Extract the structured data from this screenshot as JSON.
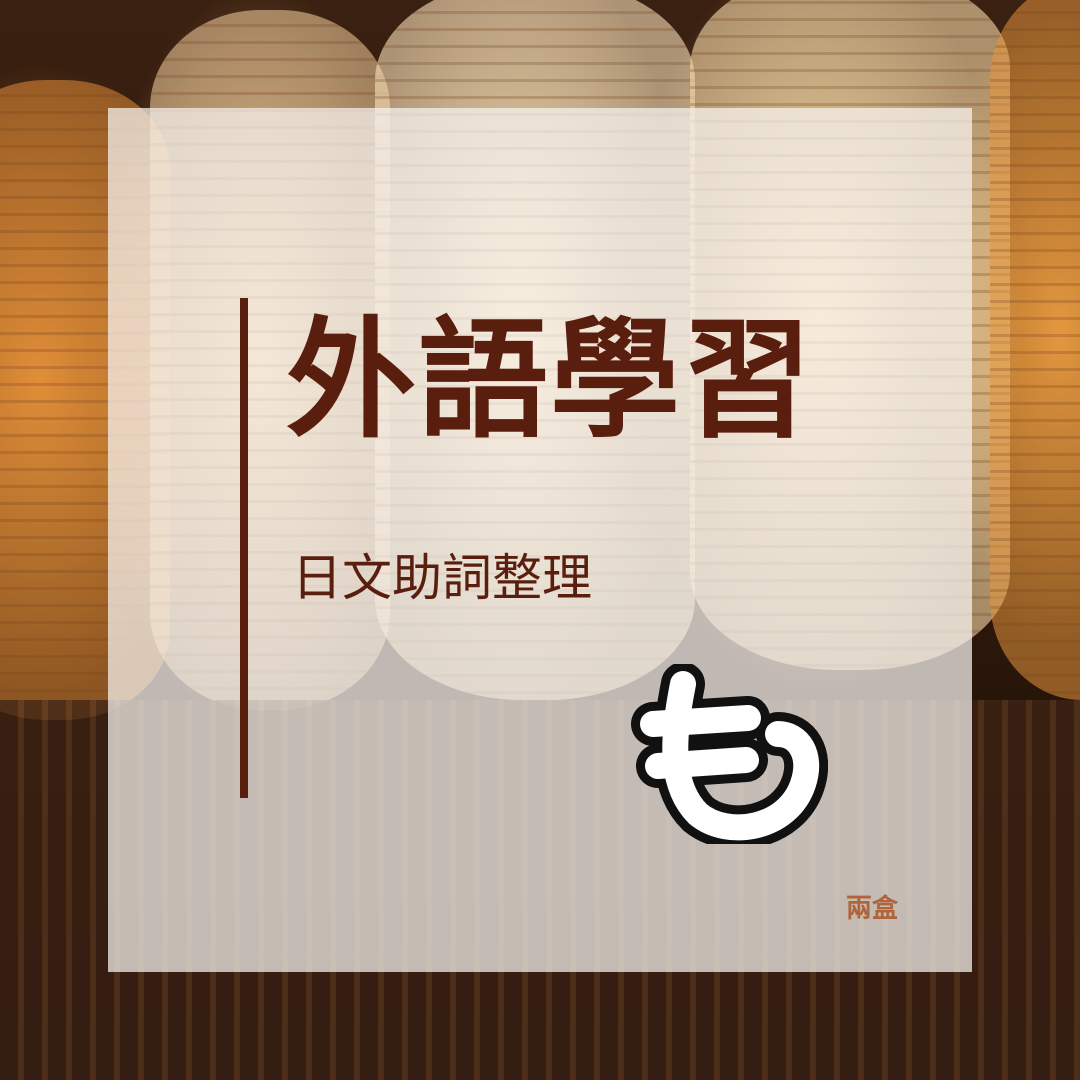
{
  "title": "外語學習",
  "subtitle": "日文助詞整理",
  "particle": "も",
  "author": "兩盒",
  "colors": {
    "primary": "#5a1e0e",
    "author": "#b0643a",
    "overlay": "rgba(245,242,238,0.74)"
  },
  "background": "lantern-photo"
}
